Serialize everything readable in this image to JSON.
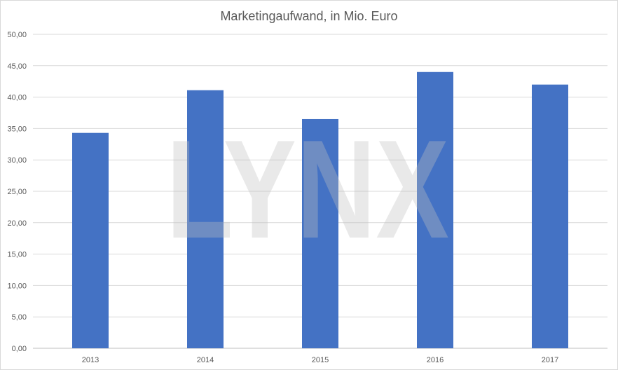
{
  "chart_data": {
    "type": "bar",
    "title": "Marketingaufwand, in Mio. Euro",
    "categories": [
      "2013",
      "2014",
      "2015",
      "2016",
      "2017"
    ],
    "values": [
      34.3,
      41.1,
      36.5,
      44.0,
      42.0
    ],
    "ylim": [
      0,
      50
    ],
    "y_ticks": [
      "0,00",
      "5,00",
      "10,00",
      "15,00",
      "20,00",
      "25,00",
      "30,00",
      "35,00",
      "40,00",
      "45,00",
      "50,00"
    ],
    "grid": true,
    "bar_color": "#4472C4",
    "legend": "none"
  },
  "watermark": {
    "text": "LYNX",
    "color": "#bfbfbf"
  }
}
